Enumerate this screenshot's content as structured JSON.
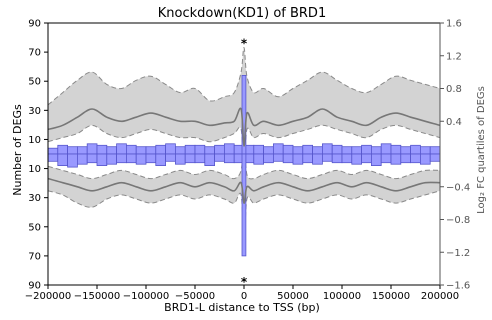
{
  "chart_data": {
    "type": "bar",
    "title": "Knockdown(KD1) of BRD1",
    "xlabel": "BRD1-L distance to TSS (bp)",
    "ylabel_left": "Number of DEGs",
    "ylabel_right": "Log₂ FC quartiles of DEGs",
    "xlim": [
      -200000,
      200000
    ],
    "ylim_left": [
      -90,
      90
    ],
    "ylim_right": [
      -1.6,
      1.6
    ],
    "x_ticks": [
      -200000,
      -150000,
      -100000,
      -50000,
      0,
      50000,
      100000,
      150000,
      200000
    ],
    "x_tick_labels": [
      "−200000",
      "−150000",
      "−100000",
      "−50000",
      "0",
      "50000",
      "100000",
      "150000",
      "200000"
    ],
    "y_left_ticks": [
      -90,
      -70,
      -50,
      -30,
      -10,
      10,
      30,
      50,
      70,
      90
    ],
    "y_left_tick_labels": [
      "90",
      "70",
      "50",
      "30",
      "10",
      "10",
      "30",
      "50",
      "70",
      "90"
    ],
    "y_right_ticks": [
      -1.6,
      -1.2,
      -0.8,
      -0.4,
      0.4,
      0.8,
      1.2,
      1.6
    ],
    "y_right_tick_labels": [
      "−1.6",
      "−1.2",
      "−0.8",
      "−0.4",
      "0.4",
      "0.8",
      "1.2",
      "1.6"
    ],
    "bin_width": 10000,
    "bins_x": [
      -195000,
      -185000,
      -175000,
      -165000,
      -155000,
      -145000,
      -135000,
      -125000,
      -115000,
      -105000,
      -95000,
      -85000,
      -75000,
      -65000,
      -55000,
      -45000,
      -35000,
      -25000,
      -15000,
      -5000,
      5000,
      15000,
      25000,
      35000,
      45000,
      55000,
      65000,
      75000,
      85000,
      95000,
      105000,
      115000,
      125000,
      135000,
      145000,
      155000,
      165000,
      175000,
      185000,
      195000
    ],
    "bars_up": [
      4,
      6,
      5,
      5,
      7,
      6,
      5,
      7,
      6,
      5,
      5,
      6,
      7,
      5,
      6,
      6,
      5,
      6,
      7,
      6,
      6,
      6,
      5,
      7,
      6,
      5,
      6,
      5,
      7,
      6,
      5,
      5,
      6,
      5,
      7,
      6,
      5,
      6,
      5,
      5
    ],
    "bars_down": [
      -5,
      -8,
      -9,
      -7,
      -6,
      -8,
      -7,
      -6,
      -6,
      -7,
      -6,
      -8,
      -5,
      -7,
      -6,
      -6,
      -8,
      -5,
      -6,
      -6,
      -6,
      -7,
      -6,
      -5,
      -6,
      -7,
      -6,
      -7,
      -5,
      -6,
      -6,
      -7,
      -6,
      -8,
      -6,
      -7,
      -6,
      -6,
      -7,
      -5
    ],
    "center_bar": {
      "x": 0,
      "width": 4000,
      "up": 54,
      "down": -70
    },
    "significance_markers": [
      {
        "x": 0,
        "y": 76,
        "label": "*"
      },
      {
        "x": 0,
        "y": -88,
        "label": "*"
      }
    ],
    "fc_x": [
      -200000,
      -185000,
      -170000,
      -155000,
      -140000,
      -125000,
      -110000,
      -95000,
      -80000,
      -65000,
      -50000,
      -35000,
      -20000,
      -10000,
      -3000,
      0,
      3000,
      10000,
      20000,
      35000,
      50000,
      65000,
      80000,
      95000,
      110000,
      125000,
      140000,
      155000,
      170000,
      185000,
      200000
    ],
    "fc_upper_q": [
      0.6,
      0.75,
      0.9,
      1.0,
      0.85,
      0.8,
      0.9,
      0.95,
      0.85,
      0.75,
      0.8,
      0.65,
      0.7,
      0.75,
      1.0,
      1.3,
      0.95,
      0.75,
      0.8,
      0.7,
      0.8,
      0.9,
      1.0,
      0.9,
      0.8,
      0.75,
      0.85,
      0.95,
      0.9,
      0.85,
      0.8
    ],
    "fc_median": [
      0.3,
      0.35,
      0.45,
      0.55,
      0.45,
      0.4,
      0.45,
      0.5,
      0.45,
      0.4,
      0.4,
      0.35,
      0.38,
      0.4,
      0.55,
      0.1,
      0.5,
      0.35,
      0.4,
      0.35,
      0.4,
      0.45,
      0.55,
      0.45,
      0.4,
      0.35,
      0.45,
      0.5,
      0.45,
      0.4,
      0.35
    ],
    "fc_lower_q": [
      0.15,
      0.2,
      0.25,
      0.35,
      0.25,
      0.2,
      0.25,
      0.3,
      0.25,
      0.2,
      0.2,
      0.15,
      0.2,
      0.25,
      0.3,
      -0.2,
      0.3,
      0.2,
      0.25,
      0.2,
      0.25,
      0.3,
      0.35,
      0.3,
      0.25,
      0.2,
      0.3,
      0.35,
      0.3,
      0.25,
      0.2
    ],
    "fc_down_upper_q": [
      -0.15,
      -0.2,
      -0.25,
      -0.3,
      -0.25,
      -0.2,
      -0.25,
      -0.3,
      -0.25,
      -0.2,
      -0.25,
      -0.2,
      -0.25,
      -0.3,
      -0.2,
      0.15,
      -0.25,
      -0.3,
      -0.25,
      -0.2,
      -0.25,
      -0.3,
      -0.25,
      -0.2,
      -0.25,
      -0.2,
      -0.25,
      -0.3,
      -0.25,
      -0.2,
      -0.2
    ],
    "fc_down_median": [
      -0.3,
      -0.35,
      -0.4,
      -0.45,
      -0.4,
      -0.35,
      -0.4,
      -0.45,
      -0.4,
      -0.35,
      -0.4,
      -0.35,
      -0.4,
      -0.45,
      -0.35,
      -0.6,
      -0.4,
      -0.45,
      -0.4,
      -0.35,
      -0.4,
      -0.45,
      -0.4,
      -0.35,
      -0.4,
      -0.35,
      -0.4,
      -0.45,
      -0.4,
      -0.35,
      -0.35
    ],
    "fc_down_lower_q": [
      -0.45,
      -0.5,
      -0.6,
      -0.65,
      -0.55,
      -0.5,
      -0.55,
      -0.6,
      -0.55,
      -0.5,
      -0.55,
      -0.5,
      -0.55,
      -0.6,
      -0.5,
      -1.1,
      -0.55,
      -0.6,
      -0.55,
      -0.5,
      -0.55,
      -0.6,
      -0.55,
      -0.5,
      -0.55,
      -0.5,
      -0.55,
      -0.6,
      -0.55,
      -0.5,
      -0.45
    ],
    "colors": {
      "bar_fill": "#9999ff",
      "bar_stroke": "#5555cc",
      "band_fill": "#d3d3d3",
      "band_stroke": "#8a8a8a",
      "median_line": "#777777",
      "axis": "#000000",
      "right_axis": "#555555"
    },
    "grid": false,
    "legend": "none"
  }
}
